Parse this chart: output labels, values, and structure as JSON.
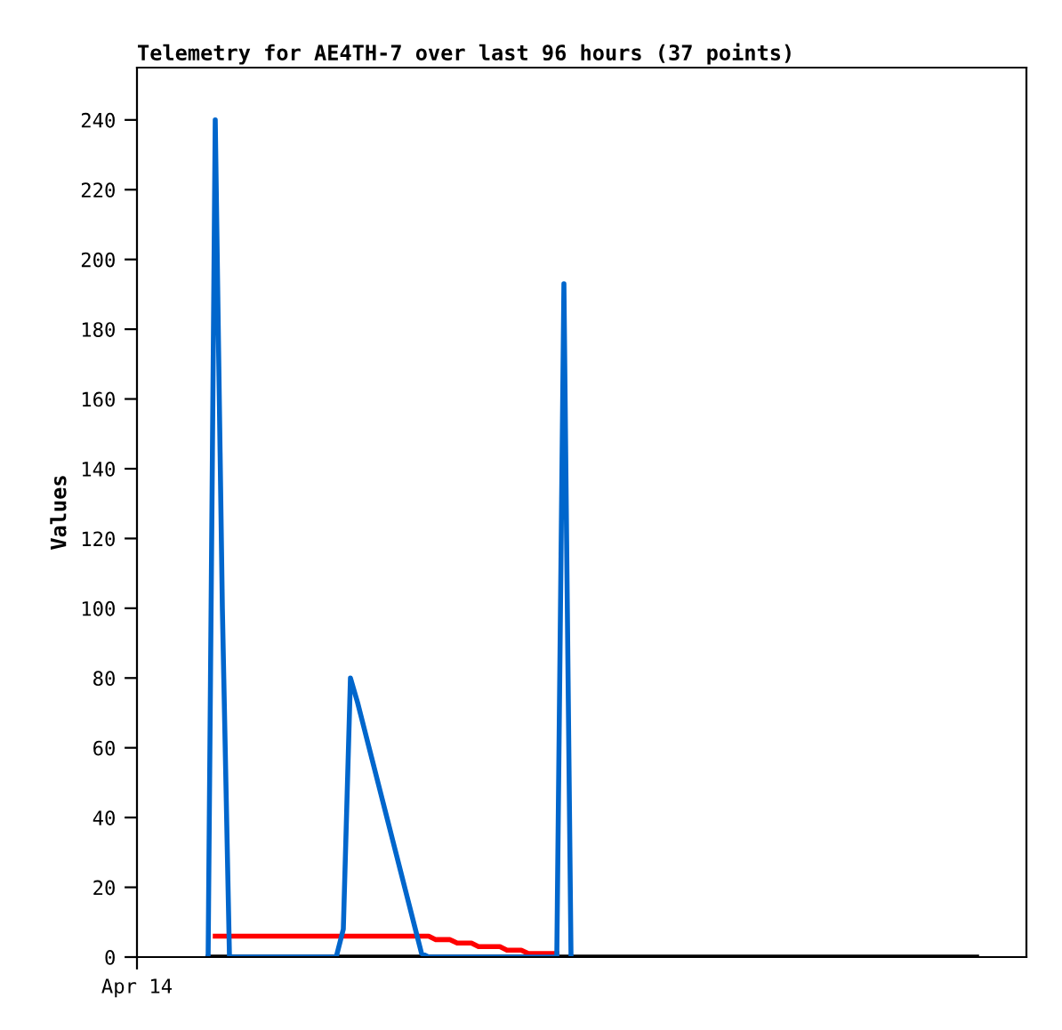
{
  "chart_data": {
    "type": "line",
    "title": "Telemetry for AE4TH-7 over last 96 hours (37 points)",
    "ylabel": "Values",
    "categories": [
      "Apr 14",
      null,
      null,
      null,
      null,
      null,
      null,
      null,
      null,
      null,
      null,
      null,
      null,
      null,
      null,
      null,
      null,
      null,
      null,
      null,
      null,
      null,
      null,
      null,
      null,
      null,
      null,
      null,
      null,
      null,
      null,
      null,
      null,
      null,
      null,
      null,
      null,
      null,
      null,
      null,
      null,
      null,
      null,
      null,
      null,
      null,
      null,
      null,
      null,
      null,
      null,
      null,
      null,
      null,
      null,
      null,
      null,
      null,
      null,
      null,
      null,
      null,
      null,
      null,
      null,
      null,
      null,
      null,
      null,
      null,
      null,
      null,
      null,
      null,
      null,
      null,
      null,
      null,
      null,
      null,
      null,
      null,
      null,
      null,
      null,
      null,
      null,
      null,
      null,
      null,
      null,
      null,
      null,
      null,
      null,
      null,
      null,
      null,
      null,
      null,
      null,
      null,
      null,
      null,
      null,
      null,
      null,
      null,
      null,
      null,
      null,
      null,
      null,
      null,
      null,
      null,
      null,
      null,
      null,
      null,
      null,
      null,
      null,
      null,
      null,
      null
    ],
    "ylim": [
      0,
      255
    ],
    "yticks": [
      0,
      20,
      40,
      60,
      80,
      100,
      120,
      140,
      160,
      180,
      200,
      220,
      240
    ],
    "grid": false,
    "legend": false,
    "series": [
      {
        "color": "#000000",
        "values": [
          null,
          null,
          null,
          null,
          null,
          null,
          null,
          null,
          null,
          null,
          0,
          0,
          0,
          0,
          0,
          0,
          0,
          0,
          0,
          0,
          0,
          0,
          0,
          0,
          0,
          0,
          0,
          0,
          0,
          0,
          0,
          0,
          0,
          0,
          0,
          0,
          0,
          0,
          0,
          0,
          0,
          0,
          0,
          0,
          0,
          0,
          0,
          0,
          0,
          0,
          0,
          0,
          0,
          0,
          0,
          0,
          0,
          0,
          0,
          0,
          0,
          0,
          0,
          0,
          0,
          0,
          0,
          0,
          0,
          0,
          0,
          0,
          0,
          0,
          0,
          0,
          0,
          0,
          0,
          0,
          0,
          0,
          0,
          0,
          0,
          0,
          0,
          0,
          0,
          0,
          0,
          0,
          0,
          0,
          0,
          0,
          0,
          0,
          0,
          0,
          0,
          0,
          0,
          0,
          0,
          0,
          0,
          0,
          0,
          0,
          0,
          0,
          0,
          0,
          0,
          0,
          0,
          0,
          0,
          null,
          null,
          null,
          null,
          null,
          null,
          null
        ]
      },
      {
        "color": "#ff0000",
        "values": [
          null,
          null,
          null,
          null,
          null,
          null,
          null,
          null,
          null,
          null,
          null,
          6,
          6,
          6,
          6,
          6,
          6,
          6,
          6,
          6,
          6,
          6,
          6,
          6,
          6,
          6,
          6,
          6,
          6,
          6,
          6,
          6,
          6,
          6,
          6,
          6,
          6,
          6,
          6,
          6,
          6,
          6,
          5,
          5,
          5,
          4,
          4,
          4,
          3,
          3,
          3,
          3,
          2,
          2,
          2,
          1,
          1,
          1,
          1,
          1,
          null,
          null,
          null,
          null,
          null,
          null,
          null,
          null,
          null,
          null,
          null,
          null,
          null,
          null,
          null,
          null,
          null,
          null,
          null,
          null,
          null,
          null,
          null,
          null,
          null,
          null,
          null,
          null,
          null,
          null,
          null,
          null,
          null,
          null,
          null,
          null,
          null,
          null,
          null,
          null,
          null,
          null,
          null,
          null,
          null,
          null,
          null,
          null,
          null,
          null,
          null,
          null,
          null,
          null,
          null,
          null,
          null,
          null,
          null,
          null,
          null,
          null,
          null,
          null,
          null,
          null
        ]
      },
      {
        "color": "#0066cc",
        "values": [
          null,
          null,
          null,
          null,
          null,
          null,
          null,
          null,
          null,
          null,
          0,
          240,
          100,
          0,
          0,
          0,
          0,
          0,
          0,
          0,
          0,
          0,
          0,
          0,
          0,
          0,
          0,
          0,
          0,
          8,
          80,
          73,
          65,
          57,
          49,
          41,
          33,
          25,
          17,
          9,
          1,
          0,
          0,
          0,
          0,
          0,
          0,
          0,
          0,
          0,
          0,
          0,
          0,
          0,
          0,
          0,
          0,
          0,
          0,
          0,
          193,
          0,
          null,
          null,
          null,
          null,
          null,
          null,
          null,
          null,
          null,
          null,
          null,
          null,
          null,
          null,
          null,
          null,
          null,
          null,
          null,
          null,
          null,
          null,
          null,
          null,
          null,
          null,
          null,
          null,
          null,
          null,
          null,
          null,
          null,
          null,
          null,
          null,
          null,
          null,
          null,
          null,
          null,
          null,
          null,
          null,
          null,
          null,
          null,
          null,
          null,
          null,
          null,
          null,
          null,
          null,
          null,
          null,
          null,
          null,
          null,
          null,
          null,
          null,
          null,
          null
        ]
      }
    ]
  }
}
